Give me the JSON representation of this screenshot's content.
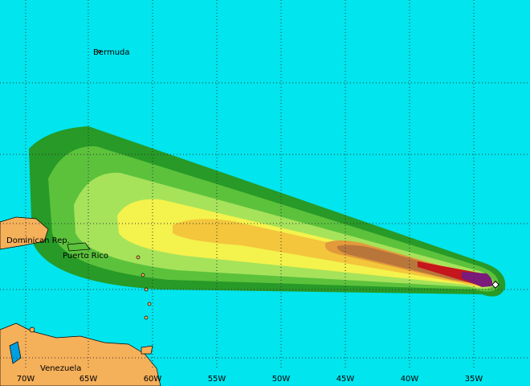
{
  "place_labels": [
    "Bermuda",
    "Dominican Rep.",
    "Puerto Rico",
    "Venezuela"
  ],
  "longitude_labels": [
    "70W",
    "65W",
    "60W",
    "55W",
    "50W",
    "45W",
    "40W",
    "35W"
  ]
}
